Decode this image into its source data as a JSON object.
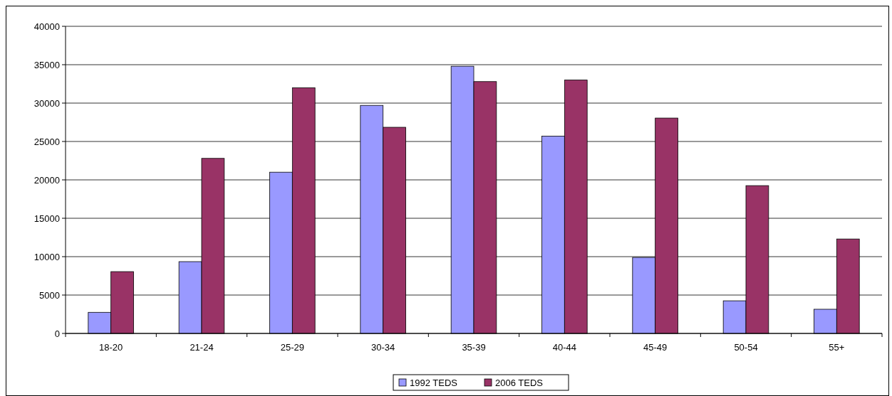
{
  "chart_data": {
    "type": "bar",
    "categories": [
      "18-20",
      "21-24",
      "25-29",
      "30-34",
      "35-39",
      "40-44",
      "45-49",
      "50-54",
      "55+"
    ],
    "series": [
      {
        "name": "1992 TEDS",
        "color": "#9999ff",
        "values": [
          2750,
          9350,
          21000,
          29700,
          34800,
          25700,
          9900,
          4250,
          3150
        ]
      },
      {
        "name": "2006 TEDS",
        "color": "#993366",
        "values": [
          8050,
          22800,
          32000,
          26850,
          32800,
          33000,
          28050,
          19250,
          12300
        ]
      }
    ],
    "ylim": [
      0,
      40000
    ],
    "yticks": [
      0,
      5000,
      10000,
      15000,
      20000,
      25000,
      30000,
      35000,
      40000
    ],
    "grid": "y",
    "legend": "bottom"
  }
}
